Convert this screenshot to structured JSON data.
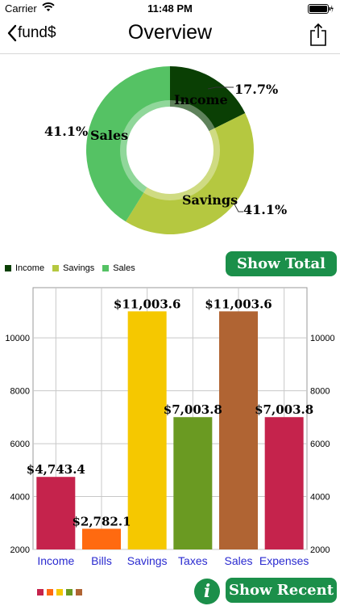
{
  "status_bar": {
    "carrier": "Carrier",
    "time": "11:48 PM"
  },
  "nav": {
    "back_label": "fund$",
    "title": "Overview"
  },
  "pie_chart": {
    "type": "pie",
    "slices": [
      {
        "label": "Income",
        "value": 17.7,
        "value_label": "17.7%",
        "color": "#0a3f04"
      },
      {
        "label": "Savings",
        "value": 41.1,
        "value_label": "41.1%",
        "color": "#b5c840"
      },
      {
        "label": "Sales",
        "value": 41.1,
        "value_label": "41.1%",
        "color": "#55c264"
      }
    ],
    "legend": [
      "Income",
      "Savings",
      "Sales"
    ],
    "legend_placement": "bottom-left"
  },
  "buttons": {
    "show_total": "Show Total",
    "show_recent": "Show Recent",
    "info": "i"
  },
  "chart_data": {
    "type": "bar",
    "categories": [
      "Income",
      "Bills",
      "Savings",
      "Taxes",
      "Sales",
      "Expenses"
    ],
    "values": [
      4743.4,
      2782.1,
      11003.6,
      7003.8,
      11003.6,
      7003.8
    ],
    "value_labels": [
      "$4,743.4",
      "$2,782.1",
      "$11,003.6",
      "$7,003.8",
      "$11,003.6",
      "$7,003.8"
    ],
    "colors": [
      "#c5234c",
      "#ff6a10",
      "#f5c800",
      "#6a9a22",
      "#b06433",
      "#c5234c"
    ],
    "y_ticks": [
      "10000",
      "8000",
      "6000",
      "4000",
      "2000"
    ],
    "ylim": [
      2000,
      11900
    ],
    "grid": true
  },
  "mini_legend_colors": [
    "#c5234c",
    "#ff6a10",
    "#f5c800",
    "#6a9a22",
    "#b06433"
  ]
}
